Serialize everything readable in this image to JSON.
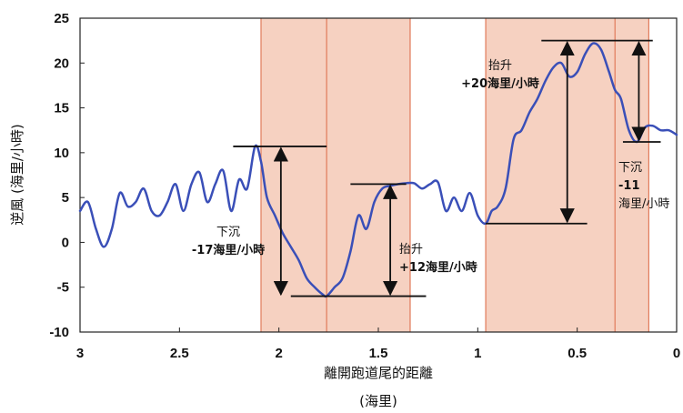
{
  "chart_data": {
    "type": "line",
    "xlabel": "離開跑道尾的距離",
    "xlabel_unit": "(海里)",
    "ylabel": "逆風 (海里/小時)",
    "xlim": [
      3,
      0
    ],
    "ylim": [
      -10,
      25
    ],
    "x_ticks": [
      "3",
      "2.5",
      "2",
      "1.5",
      "1",
      "0.5",
      "0"
    ],
    "y_ticks": [
      "25",
      "20",
      "15",
      "10",
      "5",
      "0",
      "-5",
      "-10"
    ],
    "grid": false,
    "line_color": "#3a4fb8",
    "shade_color": "#f5c9b6",
    "shaded_regions": [
      [
        2.09,
        1.34
      ],
      [
        0.96,
        0.14
      ]
    ],
    "divider_lines": [
      2.09,
      1.76,
      1.34,
      0.96,
      0.31,
      0.14
    ],
    "series": [
      {
        "x": [
          3.0,
          2.96,
          2.92,
          2.88,
          2.84,
          2.8,
          2.76,
          2.72,
          2.68,
          2.64,
          2.6,
          2.56,
          2.52,
          2.48,
          2.44,
          2.4,
          2.36,
          2.32,
          2.28,
          2.24,
          2.2,
          2.16,
          2.12,
          2.09,
          2.06,
          2.02,
          1.98,
          1.94,
          1.9,
          1.86,
          1.82,
          1.78,
          1.76,
          1.72,
          1.68,
          1.64,
          1.6,
          1.56,
          1.52,
          1.48,
          1.44,
          1.4,
          1.36,
          1.32,
          1.28,
          1.24,
          1.2,
          1.16,
          1.12,
          1.08,
          1.04,
          1.0,
          0.96,
          0.93,
          0.9,
          0.86,
          0.82,
          0.78,
          0.74,
          0.7,
          0.66,
          0.62,
          0.58,
          0.54,
          0.5,
          0.46,
          0.42,
          0.38,
          0.34,
          0.31,
          0.28,
          0.24,
          0.2,
          0.16,
          0.12,
          0.08,
          0.04,
          0.0
        ],
        "y": [
          3.5,
          4.5,
          1.5,
          -0.5,
          1.5,
          5.5,
          4.0,
          4.5,
          6.0,
          3.5,
          3.0,
          4.5,
          6.5,
          3.5,
          6.5,
          7.8,
          4.5,
          6.5,
          8.0,
          3.5,
          7.0,
          6.0,
          10.7,
          9.0,
          5.0,
          3.0,
          1.0,
          -0.5,
          -2.0,
          -4.0,
          -5.0,
          -5.8,
          -6.0,
          -5.0,
          -4.0,
          -1.0,
          3.0,
          1.5,
          4.5,
          6.0,
          6.3,
          6.5,
          6.6,
          6.6,
          6.0,
          6.5,
          6.7,
          3.5,
          5.0,
          3.5,
          5.5,
          3.0,
          2.1,
          3.5,
          4.0,
          6.0,
          11.5,
          12.5,
          14.5,
          16.0,
          18.0,
          19.5,
          20.0,
          18.5,
          19.0,
          21.0,
          22.2,
          21.5,
          19.0,
          17.0,
          16.0,
          12.5,
          11.2,
          12.8,
          13.0,
          12.5,
          12.5,
          12.0
        ]
      }
    ],
    "annotations": [
      {
        "line1": "下沉",
        "line2": "-17海里/小時",
        "top_y": 10.7,
        "top_x": [
          2.23,
          1.76
        ],
        "bottom_y": -6.0,
        "bottom_x": [
          1.94,
          1.26
        ],
        "arrow_x": 1.99
      },
      {
        "line1": "抬升",
        "line2": "+12海里/小時",
        "top_y": 6.5,
        "top_x": [
          1.64,
          1.36
        ],
        "bottom_y": -6.0,
        "arrow_x": 1.44
      },
      {
        "line1": "抬升",
        "line2": "+20海里/小時",
        "top_y": 22.5,
        "top_x": [
          0.68,
          0.12
        ],
        "bottom_y": 2.1,
        "bottom_x": [
          0.96,
          0.45
        ],
        "arrow_x": 0.55
      },
      {
        "line1": "下沉",
        "line2": "-11",
        "line3": "海里/小時",
        "top_y": 22.5,
        "bottom_y": 11.2,
        "bottom_x": [
          0.27,
          0.08
        ],
        "arrow_x": 0.19
      }
    ]
  }
}
